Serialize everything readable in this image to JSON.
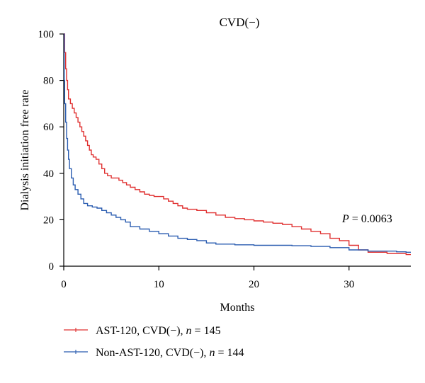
{
  "chart_data": {
    "type": "line",
    "step": true,
    "title": "CVD(−)",
    "xlabel": "Months",
    "ylabel": "Dialysis initiation free rate",
    "xlim": [
      0,
      36.5
    ],
    "ylim": [
      0,
      100
    ],
    "xticks": [
      0,
      10,
      20,
      30
    ],
    "yticks": [
      0,
      20,
      40,
      60,
      80,
      100
    ],
    "grid": false,
    "legend_position": "bottom-left",
    "annotation": {
      "prefix": "P",
      "text": " = 0.0063"
    },
    "series": [
      {
        "name": "AST-120, CVD(−), n = 145",
        "label_main": "AST-120, CVD(−), ",
        "label_n": "n",
        "label_tail": " = 145",
        "color": "#e03030",
        "x": [
          0,
          0.1,
          0.2,
          0.3,
          0.4,
          0.5,
          0.7,
          0.9,
          1.1,
          1.3,
          1.5,
          1.7,
          1.9,
          2.1,
          2.3,
          2.5,
          2.7,
          2.9,
          3.1,
          3.4,
          3.7,
          4.0,
          4.3,
          4.6,
          5.0,
          5.4,
          5.8,
          6.2,
          6.6,
          7.0,
          7.5,
          8.0,
          8.5,
          9.0,
          9.5,
          10.0,
          10.5,
          11.0,
          11.5,
          12.0,
          12.5,
          13.0,
          14.0,
          15.0,
          16.0,
          17.0,
          18.0,
          19.0,
          20.0,
          21.0,
          22.0,
          23.0,
          24.0,
          25.0,
          26.0,
          27.0,
          28.0,
          29.0,
          30.0,
          31.0,
          32.0,
          33.0,
          34.0,
          35.0,
          36.0,
          36.5
        ],
        "y": [
          100,
          92,
          85,
          80,
          76,
          72,
          70,
          68,
          66,
          64,
          62,
          60,
          58,
          56,
          54,
          52,
          50,
          48,
          47,
          46,
          44,
          42,
          40,
          39,
          38,
          38,
          37,
          36,
          35,
          34,
          33,
          32,
          31,
          30.5,
          30,
          30,
          29,
          28,
          27,
          26,
          25,
          24.5,
          24,
          23,
          22,
          21,
          20.5,
          20,
          19.5,
          19,
          18.5,
          18,
          17,
          16,
          15,
          14,
          12,
          11,
          9,
          7,
          6,
          6,
          5.5,
          5.5,
          5,
          5
        ]
      },
      {
        "name": "Non-AST-120, CVD(−), n = 144",
        "label_main": "Non-AST-120, CVD(−), ",
        "label_n": "n",
        "label_tail": " = 144",
        "color": "#2a5cb0",
        "x": [
          0,
          0.05,
          0.1,
          0.2,
          0.3,
          0.4,
          0.5,
          0.6,
          0.8,
          1.0,
          1.2,
          1.5,
          1.8,
          2.1,
          2.5,
          3.0,
          3.5,
          4.0,
          4.5,
          5.0,
          5.5,
          6.0,
          6.5,
          7.0,
          8.0,
          9.0,
          10.0,
          11.0,
          12.0,
          13.0,
          14.0,
          15.0,
          16.0,
          18.0,
          20.0,
          22.0,
          24.0,
          26.0,
          28.0,
          30.0,
          32.0,
          34.0,
          35.0,
          36.0,
          36.5
        ],
        "y": [
          100,
          80,
          70,
          62,
          55,
          50,
          46,
          42,
          38,
          35,
          33,
          31,
          29,
          27,
          26,
          25.5,
          25,
          24,
          23,
          22,
          21,
          20,
          19,
          17,
          16,
          15,
          14,
          13,
          12,
          11.5,
          11,
          10,
          9.5,
          9.2,
          9,
          9,
          8.8,
          8.5,
          8,
          7,
          6.5,
          6.5,
          6.2,
          6,
          6
        ]
      }
    ]
  }
}
